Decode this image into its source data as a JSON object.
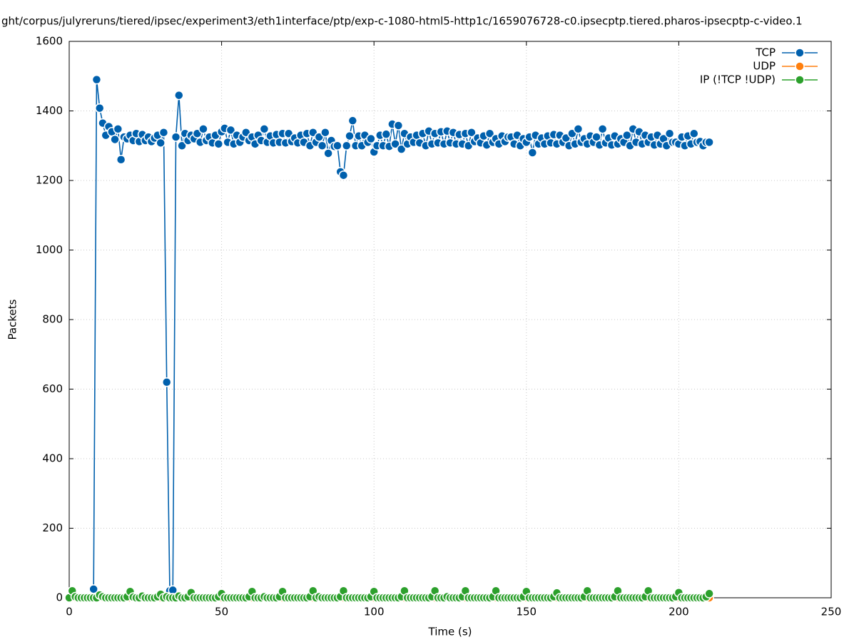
{
  "chart_data": {
    "type": "line",
    "title": "ght/corpus/julyreruns/tiered/ipsec/experiment3/eth1interface/ptp/exp-c-1080-html5-http1c/1659076728-c0.ipsecptp.tiered.pharos-ipsecptp-c-video.1",
    "x_label": "Time (s)",
    "y_label": "Packets",
    "xlim": [
      0,
      250
    ],
    "xticks": [
      0,
      50,
      100,
      150,
      200,
      250
    ],
    "ylim": [
      0,
      1600
    ],
    "yticks": [
      0,
      200,
      400,
      600,
      800,
      1000,
      1200,
      1400,
      1600
    ],
    "grid": true,
    "legend": "top-right",
    "x": [
      0,
      1,
      2,
      3,
      4,
      5,
      6,
      7,
      8,
      9,
      10,
      11,
      12,
      13,
      14,
      15,
      16,
      17,
      18,
      19,
      20,
      21,
      22,
      23,
      24,
      25,
      26,
      27,
      28,
      29,
      30,
      31,
      32,
      33,
      34,
      35,
      36,
      37,
      38,
      39,
      40,
      41,
      42,
      43,
      44,
      45,
      46,
      47,
      48,
      49,
      50,
      51,
      52,
      53,
      54,
      55,
      56,
      57,
      58,
      59,
      60,
      61,
      62,
      63,
      64,
      65,
      66,
      67,
      68,
      69,
      70,
      71,
      72,
      73,
      74,
      75,
      76,
      77,
      78,
      79,
      80,
      81,
      82,
      83,
      84,
      85,
      86,
      87,
      88,
      89,
      90,
      91,
      92,
      93,
      94,
      95,
      96,
      97,
      98,
      99,
      100,
      101,
      102,
      103,
      104,
      105,
      106,
      107,
      108,
      109,
      110,
      111,
      112,
      113,
      114,
      115,
      116,
      117,
      118,
      119,
      120,
      121,
      122,
      123,
      124,
      125,
      126,
      127,
      128,
      129,
      130,
      131,
      132,
      133,
      134,
      135,
      136,
      137,
      138,
      139,
      140,
      141,
      142,
      143,
      144,
      145,
      146,
      147,
      148,
      149,
      150,
      151,
      152,
      153,
      154,
      155,
      156,
      157,
      158,
      159,
      160,
      161,
      162,
      163,
      164,
      165,
      166,
      167,
      168,
      169,
      170,
      171,
      172,
      173,
      174,
      175,
      176,
      177,
      178,
      179,
      180,
      181,
      182,
      183,
      184,
      185,
      186,
      187,
      188,
      189,
      190,
      191,
      192,
      193,
      194,
      195,
      196,
      197,
      198,
      199,
      200,
      201,
      202,
      203,
      204,
      205,
      206,
      207,
      208,
      209,
      210
    ],
    "series": [
      {
        "name": "TCP",
        "color": "#0060ad",
        "values": [
          0,
          0,
          0,
          0,
          0,
          0,
          0,
          0,
          25,
          1490,
          1408,
          1365,
          1330,
          1355,
          1340,
          1318,
          1348,
          1260,
          1325,
          1320,
          1330,
          1315,
          1335,
          1312,
          1332,
          1315,
          1325,
          1312,
          1322,
          1330,
          1308,
          1338,
          620,
          20,
          22,
          1325,
          1445,
          1300,
          1335,
          1315,
          1330,
          1320,
          1335,
          1310,
          1348,
          1315,
          1325,
          1308,
          1330,
          1305,
          1340,
          1350,
          1310,
          1345,
          1305,
          1330,
          1310,
          1325,
          1338,
          1315,
          1325,
          1305,
          1330,
          1315,
          1348,
          1310,
          1328,
          1308,
          1332,
          1310,
          1335,
          1308,
          1335,
          1312,
          1322,
          1308,
          1330,
          1310,
          1335,
          1300,
          1338,
          1310,
          1325,
          1300,
          1338,
          1278,
          1315,
          1298,
          1300,
          1225,
          1215,
          1300,
          1328,
          1372,
          1300,
          1328,
          1300,
          1330,
          1310,
          1320,
          1282,
          1300,
          1330,
          1300,
          1333,
          1298,
          1362,
          1305,
          1358,
          1290,
          1335,
          1305,
          1325,
          1310,
          1330,
          1308,
          1335,
          1300,
          1342,
          1305,
          1335,
          1308,
          1340,
          1305,
          1342,
          1308,
          1338,
          1305,
          1332,
          1305,
          1335,
          1300,
          1338,
          1312,
          1322,
          1308,
          1328,
          1302,
          1335,
          1310,
          1320,
          1305,
          1328,
          1312,
          1325,
          1325,
          1305,
          1330,
          1300,
          1320,
          1310,
          1325,
          1280,
          1330,
          1305,
          1322,
          1305,
          1328,
          1308,
          1332,
          1305,
          1330,
          1310,
          1322,
          1300,
          1335,
          1305,
          1348,
          1310,
          1320,
          1305,
          1328,
          1310,
          1325,
          1302,
          1348,
          1308,
          1322,
          1302,
          1328,
          1305,
          1320,
          1310,
          1330,
          1300,
          1348,
          1310,
          1340,
          1305,
          1330,
          1310,
          1325,
          1302,
          1330,
          1305,
          1320,
          1300,
          1335,
          1310,
          1310,
          1305,
          1325,
          1300,
          1328,
          1305,
          1335,
          1310,
          1312,
          1300,
          1310,
          1310
        ]
      },
      {
        "name": "UDP",
        "color": "#ff7f0e",
        "values": [
          0,
          0,
          0,
          0,
          0,
          0,
          0,
          0,
          0,
          0,
          0,
          0,
          0,
          0,
          0,
          0,
          0,
          0,
          0,
          0,
          0,
          0,
          0,
          0,
          0,
          0,
          0,
          0,
          0,
          0,
          0,
          0,
          0,
          0,
          0,
          0,
          0,
          0,
          0,
          0,
          0,
          0,
          0,
          0,
          0,
          0,
          0,
          0,
          0,
          0,
          0,
          0,
          0,
          0,
          0,
          0,
          0,
          0,
          0,
          0,
          0,
          0,
          0,
          0,
          0,
          0,
          0,
          0,
          0,
          0,
          0,
          0,
          0,
          0,
          0,
          0,
          0,
          0,
          0,
          0,
          0,
          0,
          0,
          0,
          0,
          0,
          0,
          0,
          0,
          0,
          0,
          0,
          0,
          0,
          0,
          0,
          0,
          0,
          0,
          0,
          0,
          0,
          0,
          0,
          0,
          0,
          0,
          0,
          0,
          0,
          0,
          0,
          0,
          0,
          0,
          0,
          0,
          0,
          0,
          0,
          0,
          0,
          0,
          0,
          0,
          0,
          0,
          0,
          0,
          0,
          0,
          0,
          0,
          0,
          0,
          0,
          0,
          0,
          0,
          0,
          0,
          0,
          0,
          0,
          0,
          0,
          0,
          0,
          0,
          0,
          0,
          0,
          0,
          0,
          0,
          0,
          0,
          0,
          0,
          0,
          0,
          0,
          0,
          0,
          0,
          0,
          0,
          0,
          0,
          0,
          0,
          0,
          0,
          0,
          0,
          0,
          0,
          0,
          0,
          0,
          0,
          0,
          0,
          0,
          0,
          0,
          0,
          0,
          0,
          0,
          0,
          0,
          0,
          0,
          0,
          0,
          0,
          0,
          0,
          0,
          0,
          0,
          0,
          0,
          0,
          0,
          0,
          0,
          0,
          0,
          0
        ]
      },
      {
        "name": "IP (!TCP  !UDP)",
        "color": "#2ca02c",
        "values": [
          0,
          20,
          3,
          0,
          0,
          0,
          0,
          0,
          0,
          0,
          8,
          3,
          0,
          0,
          0,
          0,
          0,
          0,
          0,
          3,
          18,
          2,
          0,
          0,
          5,
          0,
          0,
          0,
          0,
          3,
          10,
          0,
          3,
          0,
          0,
          0,
          5,
          0,
          0,
          3,
          15,
          0,
          0,
          0,
          0,
          0,
          0,
          0,
          0,
          3,
          12,
          0,
          0,
          0,
          0,
          0,
          0,
          0,
          0,
          3,
          18,
          0,
          0,
          0,
          3,
          0,
          0,
          0,
          0,
          3,
          18,
          0,
          0,
          0,
          0,
          0,
          0,
          0,
          0,
          3,
          20,
          0,
          3,
          0,
          0,
          0,
          0,
          0,
          0,
          3,
          20,
          0,
          0,
          0,
          0,
          0,
          0,
          0,
          0,
          3,
          18,
          0,
          0,
          0,
          0,
          0,
          0,
          0,
          0,
          3,
          20,
          0,
          0,
          0,
          0,
          0,
          0,
          0,
          0,
          3,
          20,
          0,
          0,
          0,
          3,
          0,
          0,
          0,
          0,
          3,
          20,
          0,
          0,
          0,
          0,
          0,
          0,
          0,
          0,
          3,
          20,
          0,
          0,
          0,
          0,
          0,
          0,
          0,
          0,
          3,
          18,
          0,
          0,
          0,
          0,
          0,
          0,
          0,
          0,
          3,
          14,
          0,
          0,
          0,
          0,
          0,
          0,
          0,
          0,
          3,
          20,
          0,
          0,
          0,
          0,
          0,
          0,
          0,
          0,
          3,
          20,
          0,
          0,
          0,
          0,
          0,
          0,
          0,
          0,
          3,
          20,
          0,
          0,
          0,
          0,
          0,
          0,
          0,
          0,
          3,
          15,
          0,
          0,
          0,
          0,
          0,
          0,
          0,
          0,
          3,
          12
        ]
      }
    ]
  }
}
